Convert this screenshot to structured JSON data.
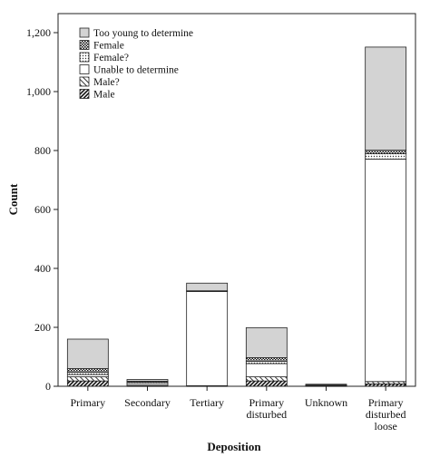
{
  "chart_data": {
    "type": "bar",
    "stacked": true,
    "xlabel": "Deposition",
    "ylabel": "Count",
    "ylim": [
      0,
      1250
    ],
    "yticks": [
      0,
      200,
      400,
      600,
      800,
      1000,
      1200
    ],
    "ytick_labels": [
      "0",
      "200",
      "400",
      "600",
      "800",
      "1,000",
      "1,200"
    ],
    "categories": [
      [
        "Primary"
      ],
      [
        "Secondary"
      ],
      [
        "Tertiary"
      ],
      [
        "Primary",
        "disturbed"
      ],
      [
        "Unknown"
      ],
      [
        "Primary",
        "disturbed",
        "loose"
      ]
    ],
    "legend_position": "top-left",
    "legend_order": [
      "Too young to determine",
      "Female",
      "Female?",
      "Unable to determine",
      "Male?",
      "Male"
    ],
    "series": [
      {
        "name": "Male",
        "pattern": "diag-dense",
        "values": [
          18,
          1,
          1,
          18,
          1,
          8
        ]
      },
      {
        "name": "Male?",
        "pattern": "diag-sparse",
        "values": [
          14,
          2,
          1,
          14,
          1,
          8
        ]
      },
      {
        "name": "Unable to determine",
        "pattern": "white",
        "values": [
          8,
          6,
          320,
          45,
          3,
          755
        ]
      },
      {
        "name": "Female?",
        "pattern": "dots",
        "values": [
          8,
          5,
          1,
          8,
          0,
          18
        ]
      },
      {
        "name": "Female",
        "pattern": "checker",
        "values": [
          12,
          3,
          1,
          12,
          0,
          12
        ]
      },
      {
        "name": "Too young to determine",
        "pattern": "gray",
        "values": [
          100,
          6,
          26,
          102,
          2,
          350
        ]
      }
    ]
  }
}
